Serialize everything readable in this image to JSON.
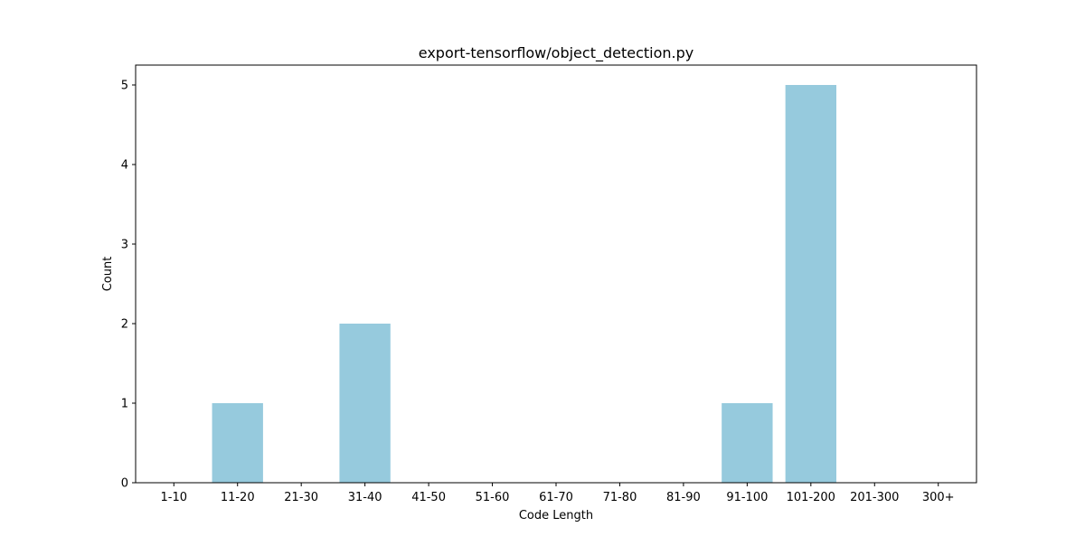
{
  "chart_data": {
    "type": "bar",
    "title": "export-tensorflow/object_detection.py",
    "xlabel": "Code Length",
    "ylabel": "Count",
    "categories": [
      "1-10",
      "11-20",
      "21-30",
      "31-40",
      "41-50",
      "51-60",
      "61-70",
      "71-80",
      "81-90",
      "91-100",
      "101-200",
      "201-300",
      "300+"
    ],
    "values": [
      0,
      1,
      0,
      2,
      0,
      0,
      0,
      0,
      0,
      1,
      5,
      0,
      0
    ],
    "ylim": [
      0,
      5.25
    ],
    "yticks": [
      "0",
      "1",
      "2",
      "3",
      "4",
      "5"
    ],
    "bar_color": "#96cadd",
    "grid": false,
    "legend": "none"
  }
}
